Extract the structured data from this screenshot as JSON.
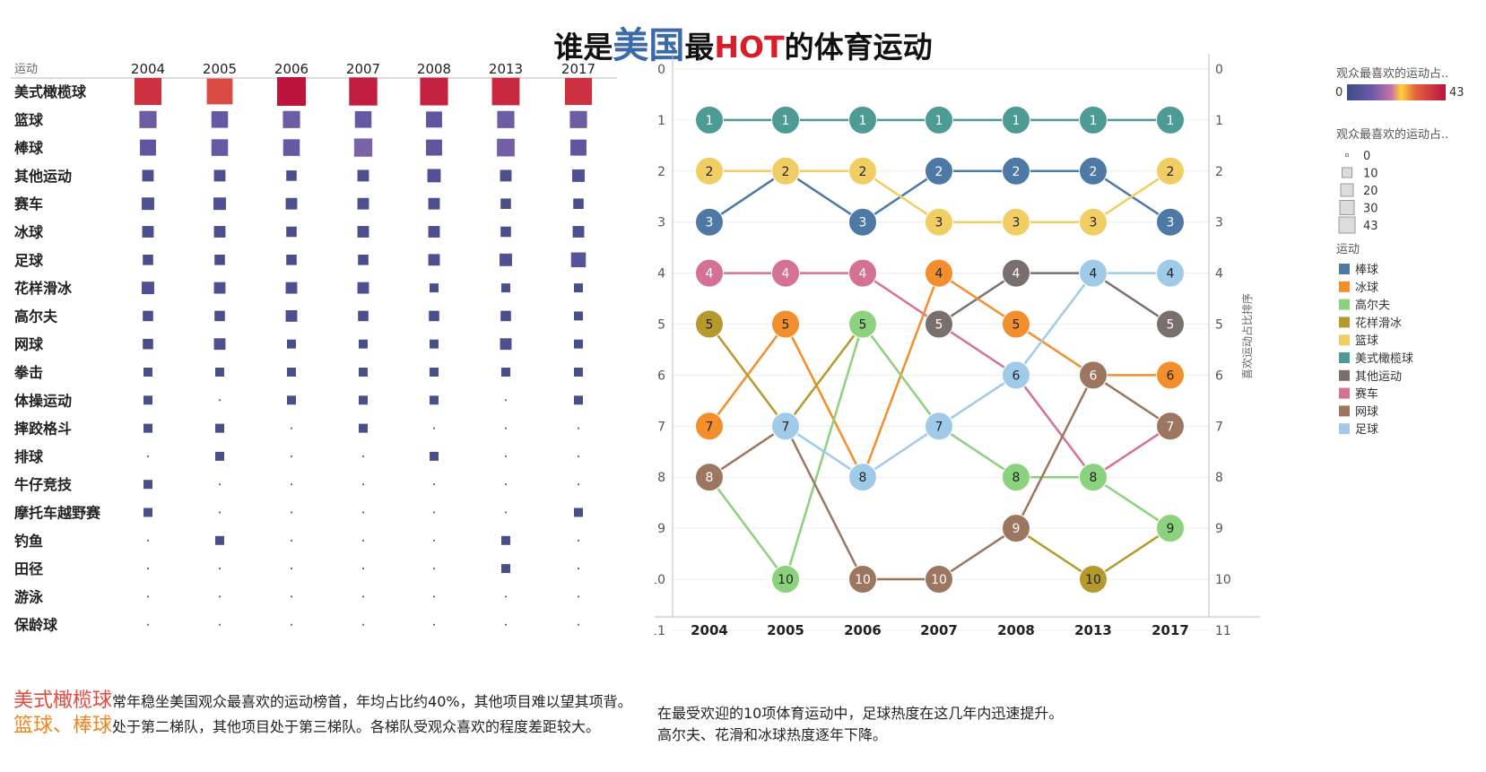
{
  "title": {
    "pre": "谁是",
    "highlight1": "美国",
    "mid": "最",
    "highlight2": "HOT",
    "post": "的体育运动"
  },
  "chart_data": [
    {
      "type": "heatmap",
      "row_header": "运动",
      "years": [
        "2004",
        "2005",
        "2006",
        "2007",
        "2008",
        "2013",
        "2017"
      ],
      "sports": [
        "美式橄榄球",
        "篮球",
        "棒球",
        "其他运动",
        "赛车",
        "冰球",
        "足球",
        "花样滑冰",
        "高尔夫",
        "网球",
        "拳击",
        "体操运动",
        "摔跤格斗",
        "排球",
        "牛仔竞技",
        "摩托车越野赛",
        "钓鱼",
        "田径",
        "游泳",
        "保龄球"
      ],
      "values": [
        [
          37,
          33,
          43,
          41,
          40,
          39,
          37
        ],
        [
          11,
          10,
          11,
          10,
          9,
          11,
          11
        ],
        [
          9,
          10,
          10,
          13,
          9,
          12,
          9
        ],
        [
          3,
          3,
          2,
          3,
          5,
          3,
          4
        ],
        [
          4,
          4,
          3,
          3,
          3,
          2,
          2
        ],
        [
          3,
          3,
          2,
          3,
          3,
          2,
          3
        ],
        [
          2,
          2,
          2,
          2,
          3,
          4,
          7
        ],
        [
          4,
          3,
          3,
          3,
          1,
          1,
          1
        ],
        [
          2,
          2,
          3,
          2,
          2,
          2,
          1
        ],
        [
          2,
          3,
          1,
          1,
          1,
          3,
          1
        ],
        [
          1,
          1,
          1,
          1,
          1,
          1,
          1
        ],
        [
          1,
          0.3,
          1,
          1,
          1,
          0.3,
          1
        ],
        [
          1,
          1,
          0.3,
          1,
          0.3,
          0.3,
          0.3
        ],
        [
          0.3,
          1,
          0.3,
          0.3,
          1,
          0.3,
          0.3
        ],
        [
          1,
          0.3,
          0.3,
          0.3,
          0.3,
          0.3,
          0.3
        ],
        [
          1,
          0.3,
          0.3,
          0.3,
          0.3,
          0.3,
          1
        ],
        [
          0.3,
          1,
          0.3,
          0.3,
          0.3,
          1,
          0.3
        ],
        [
          0.3,
          0.3,
          0.3,
          0.3,
          0.3,
          1,
          0.3
        ],
        [
          0.3,
          0.3,
          0.3,
          0.3,
          0.3,
          0.3,
          0.3
        ],
        [
          0.3,
          0.3,
          0.3,
          0.3,
          0.3,
          0.3,
          0.3
        ]
      ],
      "color_range": [
        0,
        43
      ]
    },
    {
      "type": "line",
      "subtype": "bump",
      "x": [
        "2004",
        "2005",
        "2006",
        "2007",
        "2008",
        "2013",
        "2017"
      ],
      "ylabel": "喜欢运动占比排序",
      "ylabel_right": "喜欢运动占比排序",
      "ylim": [
        0,
        11
      ],
      "y_ticks": [
        "0",
        "1",
        "2",
        "3",
        "4",
        "5",
        "6",
        "7",
        "8",
        "9",
        "10",
        "11"
      ],
      "y_inverted": true,
      "grid": true,
      "series": [
        {
          "name": "美式橄榄球",
          "color": "#4e9a95",
          "values": [
            1,
            1,
            1,
            1,
            1,
            1,
            1
          ]
        },
        {
          "name": "棒球",
          "color": "#4e79a7",
          "values": [
            3,
            2,
            3,
            2,
            2,
            2,
            3
          ]
        },
        {
          "name": "篮球",
          "color": "#f1ce63",
          "values": [
            2,
            2,
            2,
            3,
            3,
            3,
            2
          ]
        },
        {
          "name": "赛车",
          "color": "#d37295",
          "values": [
            4,
            4,
            4,
            5,
            6,
            8,
            7
          ]
        },
        {
          "name": "其他运动",
          "color": "#79706e",
          "values": [
            null,
            null,
            null,
            5,
            4,
            4,
            5
          ]
        },
        {
          "name": "冰球",
          "color": "#f28e2b",
          "values": [
            7,
            5,
            8,
            4,
            5,
            6,
            6
          ]
        },
        {
          "name": "花样滑冰",
          "color": "#b6992d",
          "values": [
            5,
            7,
            5,
            null,
            9,
            10,
            9
          ]
        },
        {
          "name": "高尔夫",
          "color": "#8cd17d",
          "values": [
            8,
            10,
            5,
            7,
            8,
            8,
            9
          ]
        },
        {
          "name": "网球",
          "color": "#9d7660",
          "values": [
            8,
            7,
            10,
            10,
            9,
            6,
            7
          ]
        },
        {
          "name": "足球",
          "color": "#a0cbe8",
          "values": [
            null,
            7,
            8,
            7,
            6,
            4,
            4
          ]
        }
      ]
    }
  ],
  "legend": {
    "color_title": "观众最喜欢的运动占..",
    "color_min": "0",
    "color_max": "43",
    "size_title": "观众最喜欢的运动占..",
    "size_items": [
      "0",
      "10",
      "20",
      "30",
      "43"
    ],
    "sport_title": "运动",
    "sport_items": [
      {
        "name": "棒球",
        "color": "#4e79a7"
      },
      {
        "name": "冰球",
        "color": "#f28e2b"
      },
      {
        "name": "高尔夫",
        "color": "#8cd17d"
      },
      {
        "name": "花样滑冰",
        "color": "#b6992d"
      },
      {
        "name": "篮球",
        "color": "#f1ce63"
      },
      {
        "name": "美式橄榄球",
        "color": "#4e9a95"
      },
      {
        "name": "其他运动",
        "color": "#79706e"
      },
      {
        "name": "赛车",
        "color": "#d37295"
      },
      {
        "name": "网球",
        "color": "#9d7660"
      },
      {
        "name": "足球",
        "color": "#a0cbe8"
      }
    ]
  },
  "captions": {
    "left_hl1": "美式橄榄球",
    "left_text1": "常年稳坐美国观众最喜欢的运动榜首，年均占比约40%，其他项目难以望其项背。",
    "left_hl2": "篮球、棒球",
    "left_text2": "处于第二梯队，其他项目处于第三梯队。各梯队受观众喜欢的程度差距较大。",
    "right_line1": "在最受欢迎的10项体育运动中，足球热度在这几年内迅速提升。",
    "right_line2": "高尔夫、花滑和冰球热度逐年下降。"
  }
}
